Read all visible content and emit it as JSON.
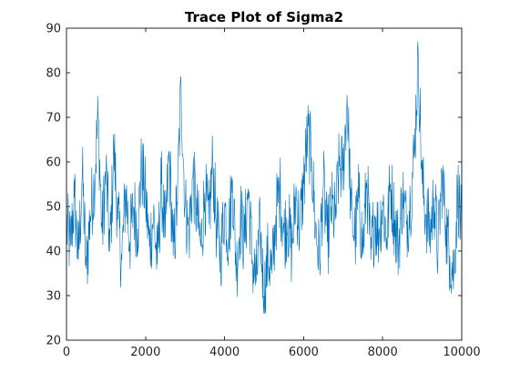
{
  "chart_data": {
    "type": "line",
    "title": "Trace Plot of Sigma2",
    "xlabel": "",
    "ylabel": "",
    "xlim": [
      0,
      10000
    ],
    "ylim": [
      20,
      90
    ],
    "xticks": [
      0,
      2000,
      4000,
      6000,
      8000,
      10000
    ],
    "yticks": [
      20,
      30,
      40,
      50,
      60,
      70,
      80,
      90
    ],
    "xtick_labels": [
      "0",
      "2000",
      "4000",
      "6000",
      "8000",
      "10000"
    ],
    "ytick_labels": [
      "20",
      "30",
      "40",
      "50",
      "60",
      "70",
      "80",
      "90"
    ],
    "grid": false,
    "series": [
      {
        "color": "#0072BD",
        "x": [
          0,
          100,
          200,
          300,
          400,
          500,
          600,
          700,
          800,
          900,
          1000,
          1100,
          1200,
          1300,
          1400,
          1500,
          1600,
          1700,
          1800,
          1900,
          2000,
          2100,
          2200,
          2300,
          2400,
          2500,
          2600,
          2700,
          2800,
          2900,
          3000,
          3100,
          3200,
          3300,
          3400,
          3500,
          3600,
          3700,
          3800,
          3900,
          4000,
          4100,
          4200,
          4300,
          4400,
          4500,
          4600,
          4700,
          4800,
          4900,
          5000,
          5100,
          5200,
          5300,
          5400,
          5500,
          5600,
          5700,
          5800,
          5900,
          6000,
          6100,
          6200,
          6300,
          6400,
          6500,
          6600,
          6700,
          6800,
          6900,
          7000,
          7100,
          7200,
          7300,
          7400,
          7500,
          7600,
          7700,
          7800,
          7900,
          8000,
          8100,
          8200,
          8300,
          8400,
          8500,
          8600,
          8700,
          8800,
          8900,
          9000,
          9100,
          9200,
          9300,
          9400,
          9500,
          9600,
          9700,
          9800,
          9900,
          10000
        ],
        "y": [
          46,
          41,
          52,
          38,
          57,
          36,
          48,
          55,
          70,
          44,
          58,
          40,
          63,
          47,
          38,
          54,
          42,
          50,
          45,
          59,
          52,
          41,
          48,
          37,
          55,
          43,
          62,
          39,
          51,
          77,
          50,
          44,
          57,
          48,
          41,
          53,
          46,
          60,
          45,
          39,
          50,
          43,
          56,
          36,
          48,
          42,
          54,
          38,
          33,
          45,
          30,
          39,
          35,
          48,
          54,
          44,
          47,
          40,
          53,
          45,
          55,
          66,
          61,
          45,
          38,
          55,
          42,
          50,
          47,
          59,
          58,
          75,
          49,
          43,
          52,
          40,
          56,
          38,
          48,
          44,
          51,
          43,
          55,
          47,
          41,
          53,
          46,
          51,
          62,
          84,
          55,
          48,
          44,
          52,
          40,
          57,
          46,
          39,
          35,
          54,
          44
        ]
      }
    ]
  }
}
